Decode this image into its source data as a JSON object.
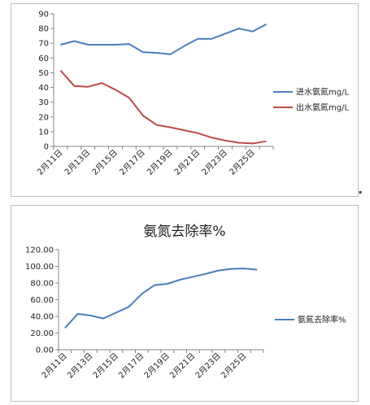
{
  "chart_data": [
    {
      "type": "line",
      "title": "",
      "xlabel": "",
      "ylabel": "",
      "ylim": [
        0,
        90
      ],
      "yticks": [
        0,
        10,
        20,
        30,
        40,
        50,
        60,
        70,
        80,
        90
      ],
      "x": [
        "2月11日",
        "2月12日",
        "2月13日",
        "2月14日",
        "2月15日",
        "2月16日",
        "2月17日",
        "2月18日",
        "2月19日",
        "2月20日",
        "2月21日",
        "2月22日",
        "2月23日",
        "2月24日",
        "2月25日",
        "2月26日"
      ],
      "xtick_labels": [
        "2月11日",
        "2月13日",
        "2月15日",
        "2月17日",
        "2月19日",
        "2月21日",
        "2月23日",
        "2月25日"
      ],
      "xtick_index": [
        0,
        2,
        4,
        6,
        8,
        10,
        12,
        14
      ],
      "grid": false,
      "legend": "right",
      "series": [
        {
          "name": "进水氨氮mg/L",
          "color": "#4a7ebb",
          "values": [
            69,
            71.5,
            69,
            69,
            69,
            69.5,
            64,
            63.5,
            62.5,
            68,
            73,
            73,
            76.5,
            80,
            78,
            83
          ]
        },
        {
          "name": "出水氨氮mg/L",
          "color": "#be4b48",
          "values": [
            51.5,
            41,
            40.5,
            43,
            38.5,
            33,
            21,
            14.5,
            13,
            11,
            9,
            6,
            4,
            2.5,
            2,
            3.5
          ]
        }
      ]
    },
    {
      "type": "line",
      "title": "氨氮去除率%",
      "xlabel": "",
      "ylabel": "",
      "ylim": [
        0,
        120
      ],
      "yticks": [
        "0.00",
        "20.00",
        "40.00",
        "60.00",
        "80.00",
        "100.00",
        "120.00"
      ],
      "x": [
        "2月11日",
        "2月12日",
        "2月13日",
        "2月14日",
        "2月15日",
        "2月16日",
        "2月17日",
        "2月18日",
        "2月19日",
        "2月20日",
        "2月21日",
        "2月22日",
        "2月23日",
        "2月24日",
        "2月25日",
        "2月26日"
      ],
      "xtick_labels": [
        "2月11日",
        "2月13日",
        "2月15日",
        "2月17日",
        "2月19日",
        "2月21日",
        "2月23日",
        "2月25日"
      ],
      "xtick_index": [
        0,
        2,
        4,
        6,
        8,
        10,
        12,
        14
      ],
      "grid": false,
      "legend": "right",
      "series": [
        {
          "name": "氨氮去除率%",
          "color": "#4a7ebb",
          "values": [
            26,
            43,
            41,
            37.5,
            44.5,
            51.5,
            67,
            77.5,
            79,
            84,
            87.5,
            91,
            95,
            97,
            97.5,
            96
          ]
        }
      ]
    }
  ]
}
